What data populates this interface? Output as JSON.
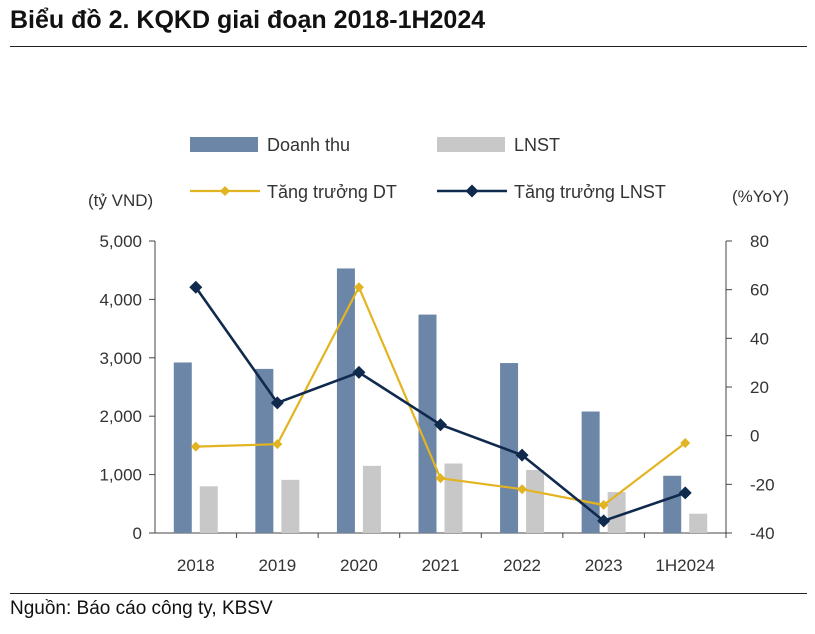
{
  "header": {
    "title": "Biểu đồ 2. KQKD giai đoạn 2018-1H2024"
  },
  "footer": {
    "source": "Nguồn: Báo cáo công ty, KBSV"
  },
  "chart_data": {
    "type": "bar",
    "title": "Biểu đồ 2. KQKD giai đoạn 2018-1H2024",
    "categories": [
      "2018",
      "2019",
      "2020",
      "2021",
      "2022",
      "2023",
      "1H2024"
    ],
    "left_axis": {
      "label": "(tỷ VND)",
      "range": [
        0,
        5000
      ],
      "ticks": [
        0,
        1000,
        2000,
        3000,
        4000,
        5000
      ],
      "tick_labels": [
        "0",
        "1,000",
        "2,000",
        "3,000",
        "4,000",
        "5,000"
      ]
    },
    "right_axis": {
      "label": "(%YoY)",
      "range": [
        -40,
        80
      ],
      "ticks": [
        -40,
        -20,
        0,
        20,
        40,
        60,
        80
      ],
      "tick_labels": [
        "-40",
        "-20",
        "0",
        "20",
        "40",
        "60",
        "80"
      ]
    },
    "series": [
      {
        "name": "Doanh thu",
        "kind": "bar",
        "axis": "left",
        "color": "#6c86a8",
        "values": [
          2920,
          2810,
          4530,
          3740,
          2910,
          2080,
          980
        ]
      },
      {
        "name": "LNST",
        "kind": "bar",
        "axis": "left",
        "color": "#c8c8c8",
        "values": [
          800,
          910,
          1150,
          1190,
          1080,
          700,
          330
        ]
      },
      {
        "name": "Tăng trưởng DT",
        "kind": "line",
        "axis": "right",
        "color": "#e3b422",
        "values": [
          -4.5,
          -3.5,
          61,
          -17.5,
          -22,
          -28.5,
          -3
        ]
      },
      {
        "name": "Tăng trưởng LNST",
        "kind": "line",
        "axis": "right",
        "color": "#0f2a4d",
        "values": [
          61,
          13.5,
          26,
          4.5,
          -8,
          -35,
          -23.5
        ]
      }
    ],
    "legend_position": "top"
  }
}
